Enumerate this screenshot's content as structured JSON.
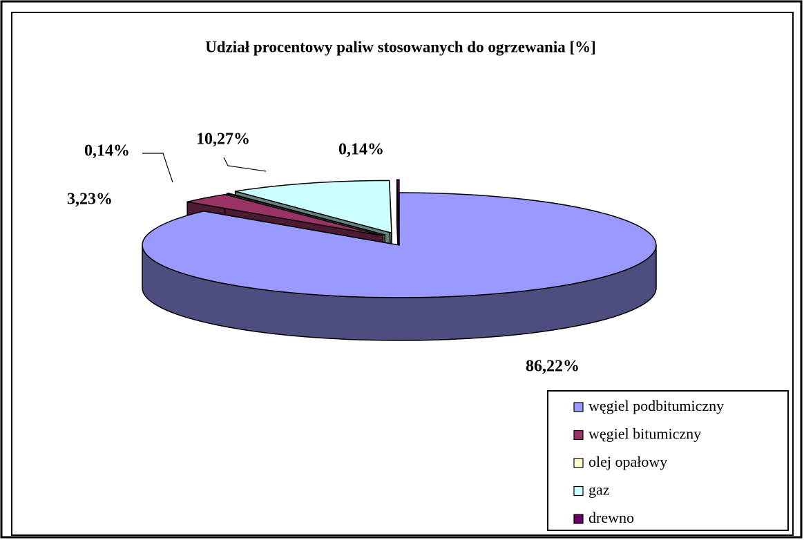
{
  "chart_data": {
    "type": "pie3d",
    "title": "Udział procentowy paliw stosowanych do ogrzewania [%]",
    "categories": [
      "węgiel podbitumiczny",
      "węgiel bitumiczny",
      "olej opałowy",
      "gaz",
      "drewno"
    ],
    "values": [
      86.22,
      3.23,
      0.14,
      10.27,
      0.14
    ],
    "value_labels": [
      "86,22%",
      "3,23%",
      "0,14%",
      "10,27%",
      "0,14%"
    ],
    "colors": [
      "#9999ff",
      "#993366",
      "#ffffcc",
      "#ccffff",
      "#660066"
    ],
    "legend": "bottom-right"
  }
}
